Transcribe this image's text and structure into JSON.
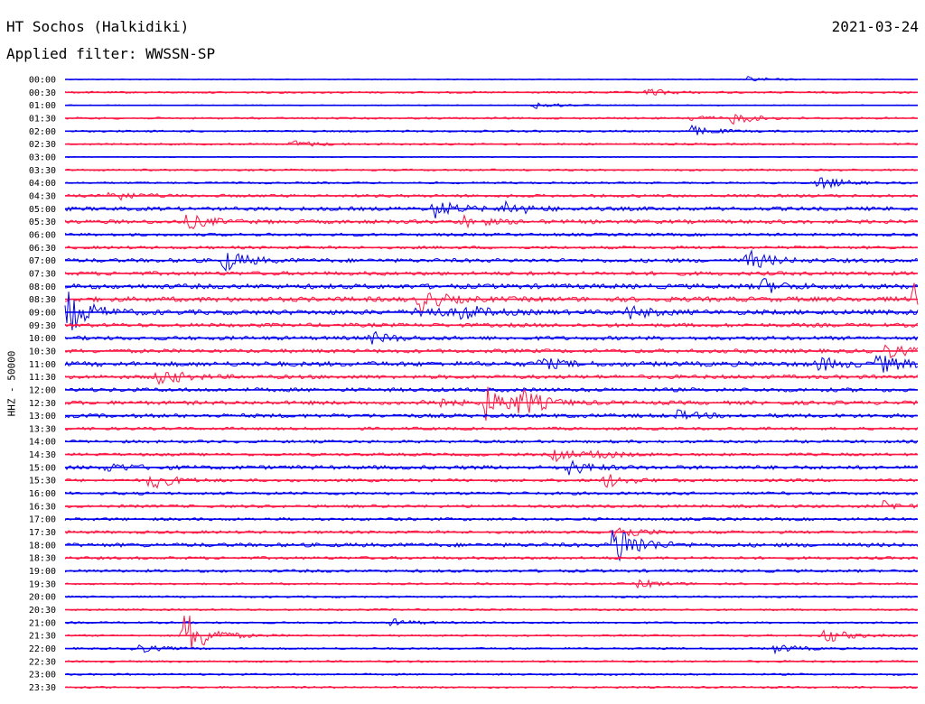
{
  "header": {
    "station": "HT Sochos (Halkidiki)",
    "date": "2021-03-24",
    "filter": "Applied filter: WWSSN-SP"
  },
  "colors": {
    "even_trace": "#0000ee",
    "odd_trace": "#ff1744"
  },
  "chart_data": {
    "type": "line",
    "ylabel": "HHZ - 50000",
    "rows": [
      "00:00",
      "00:30",
      "01:00",
      "01:30",
      "02:00",
      "02:30",
      "03:00",
      "03:30",
      "04:00",
      "04:30",
      "05:00",
      "05:30",
      "06:00",
      "06:30",
      "07:00",
      "07:30",
      "08:00",
      "08:30",
      "09:00",
      "09:30",
      "10:00",
      "10:30",
      "11:00",
      "11:30",
      "12:00",
      "12:30",
      "13:00",
      "13:30",
      "14:00",
      "14:30",
      "15:00",
      "15:30",
      "16:00",
      "16:30",
      "17:00",
      "17:30",
      "18:00",
      "18:30",
      "19:00",
      "19:30",
      "20:00",
      "20:30",
      "21:00",
      "21:30",
      "22:00",
      "22:30",
      "23:00",
      "23:30"
    ],
    "minutes_per_row": 30,
    "noise_level": [
      1,
      2,
      1,
      2,
      2,
      2,
      1,
      2,
      2,
      3,
      4,
      4,
      3,
      3,
      4,
      4,
      5,
      5,
      5,
      4,
      4,
      4,
      5,
      4,
      4,
      4,
      4,
      3,
      3,
      3,
      4,
      3,
      3,
      3,
      3,
      3,
      4,
      3,
      3,
      2,
      2,
      2,
      2,
      2,
      2,
      2,
      2,
      2
    ],
    "events": [
      {
        "row": 0,
        "minute": 24.0,
        "amp": 3
      },
      {
        "row": 1,
        "minute": 20.5,
        "amp": 4
      },
      {
        "row": 2,
        "minute": 16.5,
        "amp": 4
      },
      {
        "row": 3,
        "minute": 23.5,
        "amp": 6
      },
      {
        "row": 3,
        "minute": 22.0,
        "amp": 3
      },
      {
        "row": 4,
        "minute": 22.0,
        "amp": 6
      },
      {
        "row": 5,
        "minute": 8.0,
        "amp": 4
      },
      {
        "row": 8,
        "minute": 26.5,
        "amp": 8
      },
      {
        "row": 9,
        "minute": 1.5,
        "amp": 7
      },
      {
        "row": 10,
        "minute": 13.0,
        "amp": 10
      },
      {
        "row": 10,
        "minute": 15.5,
        "amp": 8
      },
      {
        "row": 11,
        "minute": 4.3,
        "amp": 8
      },
      {
        "row": 11,
        "minute": 14.0,
        "amp": 6
      },
      {
        "row": 14,
        "minute": 5.6,
        "amp": 12
      },
      {
        "row": 14,
        "minute": 24.0,
        "amp": 11
      },
      {
        "row": 16,
        "minute": 24.5,
        "amp": 8
      },
      {
        "row": 17,
        "minute": 12.5,
        "amp": 12
      },
      {
        "row": 17,
        "minute": 29.9,
        "amp": 20
      },
      {
        "row": 18,
        "minute": 0.1,
        "amp": 22
      },
      {
        "row": 18,
        "minute": 12.4,
        "amp": 8
      },
      {
        "row": 18,
        "minute": 13.9,
        "amp": 9
      },
      {
        "row": 18,
        "minute": 19.8,
        "amp": 7
      },
      {
        "row": 20,
        "minute": 10.8,
        "amp": 6
      },
      {
        "row": 21,
        "minute": 28.8,
        "amp": 8
      },
      {
        "row": 22,
        "minute": 16.7,
        "amp": 6
      },
      {
        "row": 22,
        "minute": 26.5,
        "amp": 7
      },
      {
        "row": 22,
        "minute": 28.6,
        "amp": 10
      },
      {
        "row": 23,
        "minute": 3.3,
        "amp": 10
      },
      {
        "row": 25,
        "minute": 12.6,
        "amp": 8
      },
      {
        "row": 25,
        "minute": 14.8,
        "amp": 18
      },
      {
        "row": 25,
        "minute": 16.0,
        "amp": 14
      },
      {
        "row": 26,
        "minute": 21.5,
        "amp": 5
      },
      {
        "row": 29,
        "minute": 17.2,
        "amp": 7
      },
      {
        "row": 29,
        "minute": 18.6,
        "amp": 5
      },
      {
        "row": 30,
        "minute": 1.5,
        "amp": 5
      },
      {
        "row": 30,
        "minute": 17.6,
        "amp": 9
      },
      {
        "row": 31,
        "minute": 3.0,
        "amp": 10
      },
      {
        "row": 31,
        "minute": 19.0,
        "amp": 8
      },
      {
        "row": 33,
        "minute": 28.8,
        "amp": 5
      },
      {
        "row": 35,
        "minute": 19.3,
        "amp": 10
      },
      {
        "row": 36,
        "minute": 19.3,
        "amp": 28
      },
      {
        "row": 39,
        "minute": 20.2,
        "amp": 5
      },
      {
        "row": 42,
        "minute": 11.5,
        "amp": 4
      },
      {
        "row": 43,
        "minute": 4.2,
        "amp": 30
      },
      {
        "row": 43,
        "minute": 26.7,
        "amp": 9
      },
      {
        "row": 44,
        "minute": 2.4,
        "amp": 6
      },
      {
        "row": 44,
        "minute": 25.0,
        "amp": 5
      }
    ]
  }
}
